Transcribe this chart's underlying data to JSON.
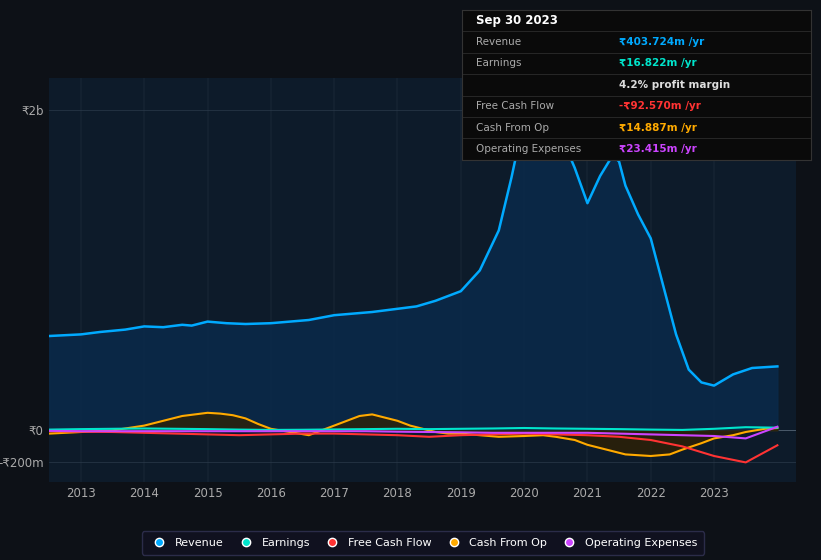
{
  "background_color": "#0d1117",
  "plot_bg_color": "#0d1b2a",
  "ylim": [
    -320,
    2200
  ],
  "xlim": [
    2012.5,
    2024.3
  ],
  "xticks": [
    2013,
    2014,
    2015,
    2016,
    2017,
    2018,
    2019,
    2020,
    2021,
    2022,
    2023
  ],
  "ytick_positions": [
    2000,
    0,
    -200
  ],
  "ytick_labels": [
    "₹2b",
    "₹0",
    "-₹200m"
  ],
  "grid_color": "#2a3a4a",
  "series": {
    "revenue": {
      "color": "#00aaff",
      "fill_color": "#0a2a4a",
      "label": "Revenue",
      "x": [
        2012.5,
        2013.0,
        2013.3,
        2013.7,
        2014.0,
        2014.3,
        2014.6,
        2014.75,
        2015.0,
        2015.3,
        2015.6,
        2016.0,
        2016.3,
        2016.6,
        2017.0,
        2017.3,
        2017.6,
        2018.0,
        2018.3,
        2018.6,
        2019.0,
        2019.3,
        2019.6,
        2019.8,
        2020.0,
        2020.15,
        2020.3,
        2020.5,
        2020.65,
        2020.8,
        2021.0,
        2021.2,
        2021.4,
        2021.5,
        2021.6,
        2021.8,
        2022.0,
        2022.2,
        2022.4,
        2022.6,
        2022.8,
        2023.0,
        2023.3,
        2023.6,
        2023.8,
        2024.0
      ],
      "y": [
        590,
        600,
        615,
        630,
        650,
        645,
        660,
        655,
        680,
        670,
        665,
        670,
        680,
        690,
        720,
        730,
        740,
        760,
        775,
        810,
        870,
        1000,
        1250,
        1580,
        1950,
        2050,
        2000,
        1900,
        1780,
        1640,
        1420,
        1590,
        1720,
        1680,
        1530,
        1350,
        1200,
        900,
        600,
        380,
        300,
        280,
        350,
        390,
        395,
        400
      ]
    },
    "earnings": {
      "color": "#00e5cc",
      "label": "Earnings",
      "x": [
        2012.5,
        2013,
        2013.5,
        2014,
        2014.5,
        2015,
        2015.5,
        2016,
        2016.5,
        2017,
        2017.5,
        2018,
        2018.5,
        2019,
        2019.5,
        2020,
        2020.5,
        2021,
        2021.5,
        2022,
        2022.5,
        2023,
        2023.5,
        2024.0
      ],
      "y": [
        5,
        8,
        10,
        12,
        10,
        8,
        5,
        3,
        4,
        6,
        8,
        10,
        8,
        10,
        12,
        15,
        12,
        10,
        8,
        5,
        3,
        10,
        20,
        17
      ]
    },
    "free_cash_flow": {
      "color": "#ff3333",
      "label": "Free Cash Flow",
      "x": [
        2012.5,
        2013,
        2013.5,
        2014,
        2014.5,
        2015,
        2015.5,
        2016,
        2016.5,
        2017,
        2017.5,
        2018,
        2018.5,
        2019,
        2019.5,
        2020,
        2020.5,
        2021,
        2021.5,
        2022,
        2022.5,
        2023,
        2023.5,
        2024.0
      ],
      "y": [
        -5,
        -8,
        -10,
        -15,
        -20,
        -25,
        -30,
        -25,
        -20,
        -20,
        -25,
        -30,
        -40,
        -30,
        -25,
        -20,
        -25,
        -30,
        -40,
        -60,
        -100,
        -160,
        -200,
        -93
      ]
    },
    "cash_from_op": {
      "color": "#ffaa00",
      "fill_color": "#332200",
      "label": "Cash From Op",
      "x": [
        2012.5,
        2013.0,
        2013.5,
        2014.0,
        2014.3,
        2014.6,
        2015.0,
        2015.2,
        2015.4,
        2015.6,
        2015.8,
        2016.0,
        2016.3,
        2016.6,
        2017.0,
        2017.2,
        2017.4,
        2017.6,
        2017.8,
        2018.0,
        2018.2,
        2018.4,
        2018.6,
        2018.8,
        2019.0,
        2019.3,
        2019.6,
        2020.0,
        2020.3,
        2020.5,
        2020.8,
        2021.0,
        2021.3,
        2021.6,
        2022.0,
        2022.3,
        2022.5,
        2022.8,
        2023.0,
        2023.3,
        2023.5,
        2023.8,
        2024.0
      ],
      "y": [
        -20,
        -10,
        0,
        30,
        60,
        90,
        110,
        105,
        95,
        75,
        40,
        10,
        -10,
        -30,
        30,
        60,
        90,
        100,
        80,
        60,
        30,
        10,
        -10,
        -20,
        -20,
        -30,
        -40,
        -35,
        -30,
        -40,
        -60,
        -90,
        -120,
        -150,
        -160,
        -150,
        -120,
        -80,
        -50,
        -30,
        -10,
        10,
        15
      ]
    },
    "operating_expenses": {
      "color": "#cc44ff",
      "label": "Operating Expenses",
      "x": [
        2012.5,
        2013,
        2013.5,
        2014,
        2014.5,
        2015,
        2015.5,
        2016,
        2016.5,
        2017,
        2017.5,
        2018,
        2018.5,
        2019,
        2019.5,
        2020,
        2020.5,
        2021,
        2021.5,
        2022,
        2022.5,
        2023,
        2023.5,
        2024.0
      ],
      "y": [
        -3,
        -5,
        -5,
        -5,
        -5,
        -5,
        -5,
        -5,
        -5,
        -5,
        -5,
        -8,
        -10,
        -12,
        -15,
        -15,
        -15,
        -15,
        -20,
        -25,
        -30,
        -35,
        -50,
        23
      ]
    }
  },
  "info_box_rows": [
    {
      "label": "Sep 30 2023",
      "value": "",
      "value_color": "#ffffff",
      "label_color": "#ffffff",
      "is_title": true
    },
    {
      "label": "Revenue",
      "value": "₹403.724m /yr",
      "value_color": "#00aaff",
      "label_color": "#aaaaaa",
      "is_title": false
    },
    {
      "label": "Earnings",
      "value": "₹16.822m /yr",
      "value_color": "#00e5cc",
      "label_color": "#aaaaaa",
      "is_title": false
    },
    {
      "label": "",
      "value": "4.2% profit margin",
      "value_color": "#dddddd",
      "label_color": "#aaaaaa",
      "is_title": false
    },
    {
      "label": "Free Cash Flow",
      "value": "-₹92.570m /yr",
      "value_color": "#ff3333",
      "label_color": "#aaaaaa",
      "is_title": false
    },
    {
      "label": "Cash From Op",
      "value": "₹14.887m /yr",
      "value_color": "#ffaa00",
      "label_color": "#aaaaaa",
      "is_title": false
    },
    {
      "label": "Operating Expenses",
      "value": "₹23.415m /yr",
      "value_color": "#cc44ff",
      "label_color": "#aaaaaa",
      "is_title": false
    }
  ],
  "legend": [
    {
      "label": "Revenue",
      "color": "#00aaff"
    },
    {
      "label": "Earnings",
      "color": "#00e5cc"
    },
    {
      "label": "Free Cash Flow",
      "color": "#ff3333"
    },
    {
      "label": "Cash From Op",
      "color": "#ffaa00"
    },
    {
      "label": "Operating Expenses",
      "color": "#cc44ff"
    }
  ]
}
